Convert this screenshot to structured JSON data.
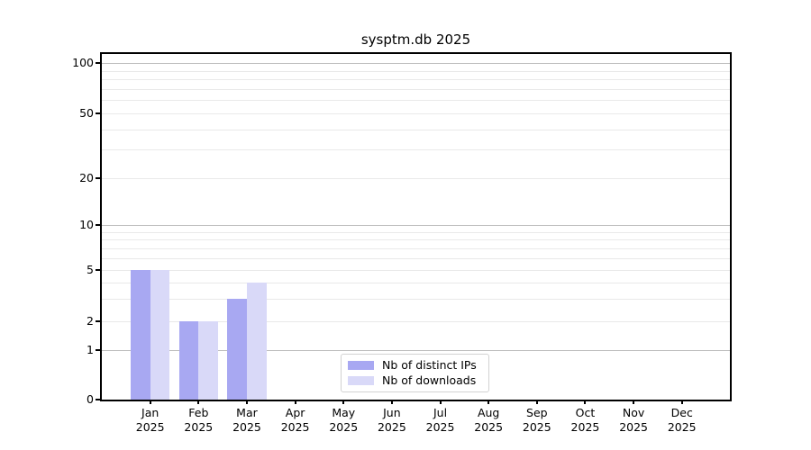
{
  "title": "sysptm.db 2025",
  "chart_data": {
    "type": "bar",
    "title": "sysptm.db 2025",
    "categories": [
      "Jan",
      "Feb",
      "Mar",
      "Apr",
      "May",
      "Jun",
      "Jul",
      "Aug",
      "Sep",
      "Oct",
      "Nov",
      "Dec"
    ],
    "year_label": "2025",
    "series": [
      {
        "name": "Nb of distinct IPs",
        "color": "#a8a8f2",
        "values": [
          5,
          2,
          3,
          0,
          0,
          0,
          0,
          0,
          0,
          0,
          0,
          0
        ]
      },
      {
        "name": "Nb of downloads",
        "color": "#d9d9f8",
        "values": [
          5,
          2,
          4,
          0,
          0,
          0,
          0,
          0,
          0,
          0,
          0,
          0
        ]
      }
    ],
    "y_axis": {
      "scale": "symlog",
      "tick_values": [
        0,
        1,
        2,
        5,
        10,
        20,
        50,
        100
      ],
      "major_gridline_values": [
        1,
        10,
        100
      ],
      "minor_gridline_values": [
        2,
        3,
        4,
        5,
        6,
        7,
        8,
        9,
        20,
        30,
        40,
        50,
        60,
        70,
        80,
        90
      ],
      "range": [
        0,
        100
      ]
    },
    "legend": {
      "position": "lower center",
      "entries": [
        "Nb of distinct IPs",
        "Nb of downloads"
      ]
    },
    "grid": true
  },
  "colors": {
    "background": "#ffffff",
    "spine": "#000000",
    "major_grid": "#bdbdbd",
    "minor_grid": "#e9e9e9",
    "bar_distinct_ips": "#a8a8f2",
    "bar_downloads": "#d9d9f8"
  }
}
